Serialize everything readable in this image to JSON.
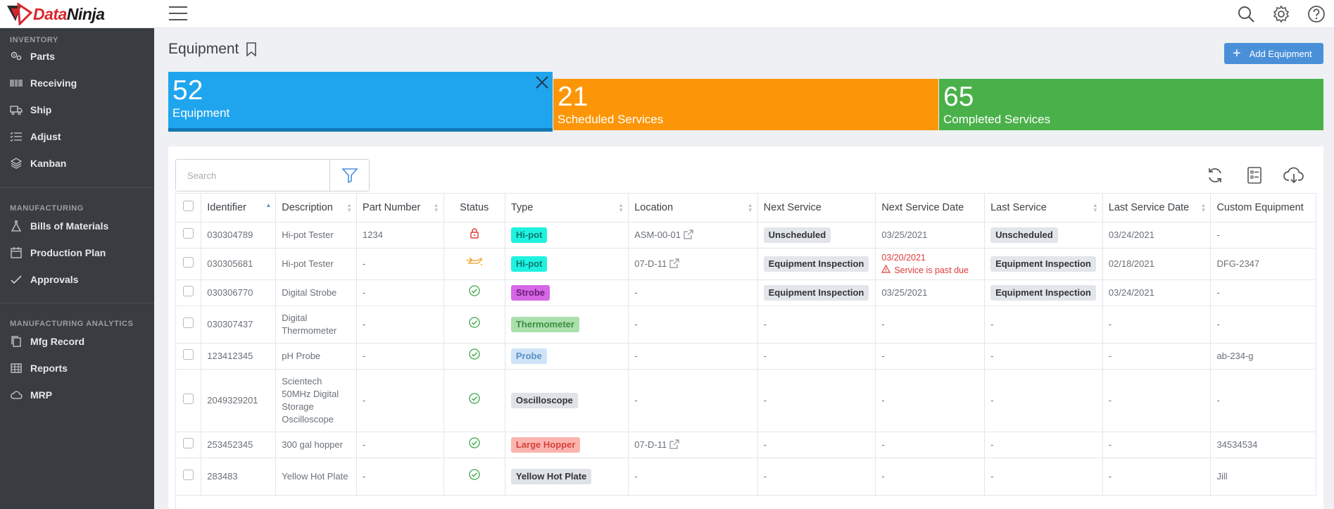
{
  "app": {
    "brand_part1": "Data",
    "brand_part2": "Ninja"
  },
  "sidebar": {
    "sections": [
      {
        "title": "INVENTORY",
        "items": [
          {
            "label": "Parts",
            "icon": "parts-icon"
          },
          {
            "label": "Receiving",
            "icon": "barcode-icon"
          },
          {
            "label": "Ship",
            "icon": "truck-icon"
          },
          {
            "label": "Adjust",
            "icon": "list-adjust-icon"
          },
          {
            "label": "Kanban",
            "icon": "layers-icon"
          }
        ]
      },
      {
        "title": "MANUFACTURING",
        "items": [
          {
            "label": "Bills of Materials",
            "icon": "flask-icon"
          },
          {
            "label": "Production Plan",
            "icon": "calendar-icon"
          },
          {
            "label": "Approvals",
            "icon": "check-icon"
          }
        ]
      },
      {
        "title": "MANUFACTURING ANALYTICS",
        "items": [
          {
            "label": "Mfg Record",
            "icon": "copy-icon"
          },
          {
            "label": "Reports",
            "icon": "table-icon"
          },
          {
            "label": "MRP",
            "icon": "cloud-icon"
          }
        ]
      }
    ]
  },
  "header": {
    "title": "Equipment",
    "add_button": "Add Equipment"
  },
  "kpis": [
    {
      "value": "52",
      "label": "Equipment",
      "color": "#1fa5ed"
    },
    {
      "value": "21",
      "label": "Scheduled Services",
      "color": "#fc9608"
    },
    {
      "value": "65",
      "label": "Completed Services",
      "color": "#4ab04a"
    }
  ],
  "search": {
    "placeholder": "Search"
  },
  "table": {
    "columns": [
      "Identifier",
      "Description",
      "Part Number",
      "Status",
      "Type",
      "Location",
      "Next Service",
      "Next Service Date",
      "Last Service",
      "Last Service Date",
      "Custom Equipment"
    ],
    "rows": [
      {
        "identifier": "030304789",
        "description": "Hi-pot Tester",
        "part_number": "1234",
        "status": "locked",
        "type": "Hi-pot",
        "location": "ASM-00-01",
        "next_service": "Unscheduled",
        "next_service_date": "03/25/2021",
        "last_service": "Unscheduled",
        "last_service_date": "03/24/2021",
        "custom": "-"
      },
      {
        "identifier": "030305681",
        "description": "Hi-pot Tester",
        "part_number": "-",
        "status": "service-needed",
        "type": "Hi-pot",
        "location": "07-D-11",
        "next_service": "Equipment Inspection",
        "next_service_date": "03/20/2021",
        "next_service_note": "Service is past due",
        "last_service": "Equipment Inspection",
        "last_service_date": "02/18/2021",
        "custom": "DFG-2347"
      },
      {
        "identifier": "030306770",
        "description": "Digital Strobe",
        "part_number": "-",
        "status": "ok",
        "type": "Strobe",
        "location": "-",
        "next_service": "Equipment Inspection",
        "next_service_date": "03/25/2021",
        "last_service": "Equipment Inspection",
        "last_service_date": "03/24/2021",
        "custom": "-"
      },
      {
        "identifier": "030307437",
        "description": "Digital Thermometer",
        "part_number": "-",
        "status": "ok",
        "type": "Thermometer",
        "location": "-",
        "next_service": "-",
        "next_service_date": "-",
        "last_service": "-",
        "last_service_date": "-",
        "custom": "-"
      },
      {
        "identifier": "123412345",
        "description": "pH Probe",
        "part_number": "-",
        "status": "ok",
        "type": "Probe",
        "location": "-",
        "next_service": "-",
        "next_service_date": "-",
        "last_service": "-",
        "last_service_date": "-",
        "custom": "ab-234-g"
      },
      {
        "identifier": "2049329201",
        "description": "Scientech 50MHz Digital Storage Oscilloscope",
        "part_number": "-",
        "status": "ok",
        "type": "Oscilloscope",
        "location": "-",
        "next_service": "-",
        "next_service_date": "-",
        "last_service": "-",
        "last_service_date": "-",
        "custom": "-"
      },
      {
        "identifier": "253452345",
        "description": "300 gal hopper",
        "part_number": "-",
        "status": "ok",
        "type": "Large Hopper",
        "location": "07-D-11",
        "next_service": "-",
        "next_service_date": "-",
        "last_service": "-",
        "last_service_date": "-",
        "custom": "34534534"
      },
      {
        "identifier": "283483",
        "description": "Yellow Hot Plate",
        "part_number": "-",
        "status": "ok",
        "type": "Yellow Hot Plate",
        "location": "-",
        "next_service": "-",
        "next_service_date": "-",
        "last_service": "-",
        "last_service_date": "-",
        "custom": "Jill"
      }
    ]
  },
  "colors": {
    "accent": "#4a90d9",
    "sidebar_bg": "#393c40",
    "ok": "#3aa84a",
    "warn": "#e23b3b",
    "service": "#f0a020"
  }
}
